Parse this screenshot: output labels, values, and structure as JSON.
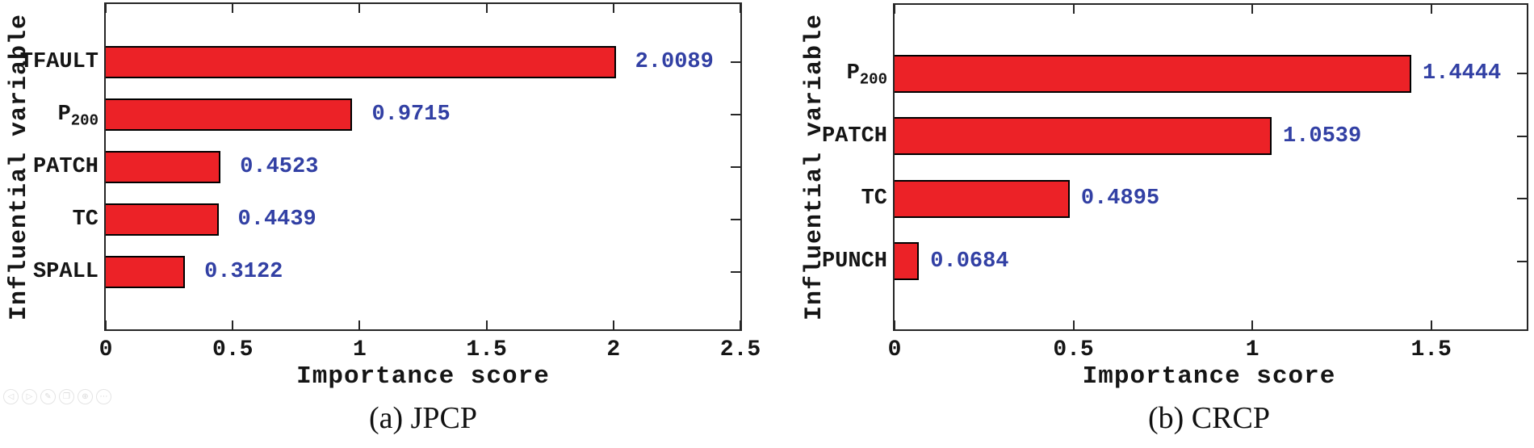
{
  "figure": {
    "background": "#ffffff"
  },
  "toolbar": {
    "glyphs": [
      "◁",
      "▷",
      "✎",
      "❐",
      "⊕",
      "⋯"
    ],
    "icon_names": [
      "prev-icon",
      "next-icon",
      "edit-icon",
      "copy-icon",
      "zoom-icon",
      "more-icon"
    ]
  },
  "colors": {
    "bar_fill": "#EC2227",
    "bar_border": "#000000",
    "axis": "#262626",
    "value_label": "#3240A4",
    "text": "#151515"
  },
  "chart_data": [
    {
      "type": "bar",
      "orientation": "horizontal",
      "caption": "(a) JPCP",
      "xlabel": "Importance score",
      "ylabel": "Influential variable",
      "categories": [
        "TFAULT",
        "P_{200}",
        "PATCH",
        "TC",
        "SPALL"
      ],
      "values": [
        2.0089,
        0.9715,
        0.4523,
        0.4439,
        0.3122
      ],
      "value_labels": [
        "2.0089",
        "0.9715",
        "0.4523",
        "0.4439",
        "0.3122"
      ],
      "xlim": [
        0,
        2.5
      ],
      "xticks": [
        0,
        0.5,
        1,
        1.5,
        2,
        2.5
      ],
      "xtick_labels": [
        "0",
        "0.5",
        "1",
        "1.5",
        "2",
        "2.5"
      ],
      "grid": false,
      "legend": "none",
      "bar_color": "#EC2227",
      "value_color": "#3240A4"
    },
    {
      "type": "bar",
      "orientation": "horizontal",
      "caption": "(b) CRCP",
      "xlabel": "Importance score",
      "ylabel": "Influential variable",
      "categories": [
        "P_{200}",
        "PATCH",
        "TC",
        "PUNCH"
      ],
      "values": [
        1.4444,
        1.0539,
        0.4895,
        0.0684
      ],
      "value_labels": [
        "1.4444",
        "1.0539",
        "0.4895",
        "0.0684"
      ],
      "xlim": [
        0,
        1.767
      ],
      "xticks": [
        0,
        0.5,
        1,
        1.5
      ],
      "xtick_labels": [
        "0",
        "0.5",
        "1",
        "1.5"
      ],
      "grid": false,
      "legend": "none",
      "bar_color": "#EC2227",
      "value_color": "#3240A4"
    }
  ]
}
